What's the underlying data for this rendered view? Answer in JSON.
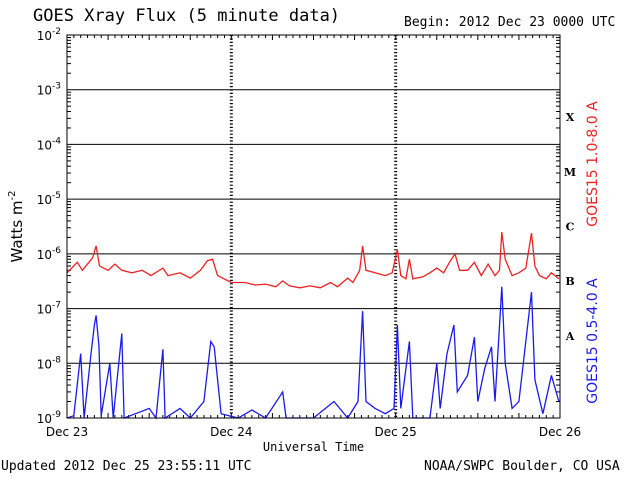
{
  "header": {
    "title": "GOES Xray Flux (5 minute data)",
    "begin": "Begin:  2012 Dec 23 0000 UTC"
  },
  "footer": {
    "updated": "Updated 2012 Dec 25 23:55:11 UTC",
    "credit": "NOAA/SWPC Boulder, CO USA"
  },
  "chart_data": {
    "type": "line",
    "title": "GOES Xray Flux (5 minute data)",
    "xlabel": "Universal Time",
    "ylabel": "Watts m",
    "ylabel_sup": "-2",
    "yscale": "log",
    "ylim": [
      1e-09,
      0.01
    ],
    "xlim": [
      "2012-12-23 00:00",
      "2012-12-26 00:00"
    ],
    "x_ticks": [
      "Dec 23",
      "Dec 24",
      "Dec 25",
      "Dec 26"
    ],
    "y_ticks": [
      {
        "base": "10",
        "exp": "-2",
        "value": 0.01
      },
      {
        "base": "10",
        "exp": "-3",
        "value": 0.001
      },
      {
        "base": "10",
        "exp": "-4",
        "value": 0.0001
      },
      {
        "base": "10",
        "exp": "-5",
        "value": 1e-05
      },
      {
        "base": "10",
        "exp": "-6",
        "value": 1e-06
      },
      {
        "base": "10",
        "exp": "-7",
        "value": 1e-07
      },
      {
        "base": "10",
        "exp": "-8",
        "value": 1e-08
      },
      {
        "base": "10",
        "exp": "-9",
        "value": 1e-09
      }
    ],
    "flare_classes": [
      {
        "label": "X",
        "value": 0.0003162
      },
      {
        "label": "M",
        "value": 3.162e-05
      },
      {
        "label": "C",
        "value": 3.162e-06
      },
      {
        "label": "B",
        "value": 3.162e-07
      },
      {
        "label": "A",
        "value": 3.162e-08
      }
    ],
    "grid": true,
    "colors": {
      "long": "#ee2222",
      "short": "#1a1aee"
    },
    "series": [
      {
        "name": "GOES15 1.0-8.0 A",
        "color": "#ee2222",
        "points": [
          [
            "2012-12-23 00:00",
            4.5e-07
          ],
          [
            "2012-12-23 01:30",
            7e-07
          ],
          [
            "2012-12-23 02:15",
            5e-07
          ],
          [
            "2012-12-23 03:45",
            8.5e-07
          ],
          [
            "2012-12-23 04:15",
            1.4e-06
          ],
          [
            "2012-12-23 04:45",
            6e-07
          ],
          [
            "2012-12-23 06:00",
            5e-07
          ],
          [
            "2012-12-23 07:00",
            6.5e-07
          ],
          [
            "2012-12-23 08:00",
            5e-07
          ],
          [
            "2012-12-23 09:30",
            4.5e-07
          ],
          [
            "2012-12-23 11:00",
            5e-07
          ],
          [
            "2012-12-23 12:15",
            4e-07
          ],
          [
            "2012-12-23 14:00",
            5.5e-07
          ],
          [
            "2012-12-23 14:45",
            4e-07
          ],
          [
            "2012-12-23 16:30",
            4.5e-07
          ],
          [
            "2012-12-23 18:00",
            3.6e-07
          ],
          [
            "2012-12-23 19:30",
            5e-07
          ],
          [
            "2012-12-23 20:30",
            7.5e-07
          ],
          [
            "2012-12-23 21:15",
            8e-07
          ],
          [
            "2012-12-23 22:00",
            4e-07
          ],
          [
            "2012-12-24 00:00",
            3e-07
          ],
          [
            "2012-12-24 02:00",
            3e-07
          ],
          [
            "2012-12-24 03:30",
            2.7e-07
          ],
          [
            "2012-12-24 05:00",
            2.8e-07
          ],
          [
            "2012-12-24 06:30",
            2.5e-07
          ],
          [
            "2012-12-24 07:30",
            3.2e-07
          ],
          [
            "2012-12-24 08:30",
            2.6e-07
          ],
          [
            "2012-12-24 10:00",
            2.4e-07
          ],
          [
            "2012-12-24 11:30",
            2.6e-07
          ],
          [
            "2012-12-24 13:00",
            2.4e-07
          ],
          [
            "2012-12-24 14:30",
            3e-07
          ],
          [
            "2012-12-24 15:30",
            2.5e-07
          ],
          [
            "2012-12-24 17:00",
            3.6e-07
          ],
          [
            "2012-12-24 17:45",
            3e-07
          ],
          [
            "2012-12-24 18:45",
            5e-07
          ],
          [
            "2012-12-24 19:10",
            1.4e-06
          ],
          [
            "2012-12-24 19:40",
            5e-07
          ],
          [
            "2012-12-24 21:00",
            4.5e-07
          ],
          [
            "2012-12-24 22:30",
            4e-07
          ],
          [
            "2012-12-24 23:30",
            4.5e-07
          ],
          [
            "2012-12-25 00:15",
            1.2e-06
          ],
          [
            "2012-12-25 00:45",
            4e-07
          ],
          [
            "2012-12-25 01:30",
            3.5e-07
          ],
          [
            "2012-12-25 02:00",
            8e-07
          ],
          [
            "2012-12-25 02:30",
            3.5e-07
          ],
          [
            "2012-12-25 04:00",
            3.8e-07
          ],
          [
            "2012-12-25 05:00",
            4.5e-07
          ],
          [
            "2012-12-25 06:00",
            5.5e-07
          ],
          [
            "2012-12-25 07:00",
            4.5e-07
          ],
          [
            "2012-12-25 08:00",
            7.5e-07
          ],
          [
            "2012-12-25 08:40",
            1e-06
          ],
          [
            "2012-12-25 09:20",
            5e-07
          ],
          [
            "2012-12-25 10:30",
            5e-07
          ],
          [
            "2012-12-25 11:30",
            7e-07
          ],
          [
            "2012-12-25 12:30",
            4e-07
          ],
          [
            "2012-12-25 13:30",
            6.5e-07
          ],
          [
            "2012-12-25 14:30",
            4e-07
          ],
          [
            "2012-12-25 15:10",
            5e-07
          ],
          [
            "2012-12-25 15:30",
            2.5e-06
          ],
          [
            "2012-12-25 16:00",
            8e-07
          ],
          [
            "2012-12-25 17:00",
            4e-07
          ],
          [
            "2012-12-25 18:00",
            4.5e-07
          ],
          [
            "2012-12-25 19:00",
            5.5e-07
          ],
          [
            "2012-12-25 19:50",
            2.4e-06
          ],
          [
            "2012-12-25 20:20",
            6e-07
          ],
          [
            "2012-12-25 21:00",
            4e-07
          ],
          [
            "2012-12-25 22:00",
            3.5e-07
          ],
          [
            "2012-12-25 22:45",
            4.5e-07
          ],
          [
            "2012-12-25 23:50",
            3.5e-07
          ]
        ]
      },
      {
        "name": "GOES15 0.5-4.0 A",
        "color": "#1a1aee",
        "points": [
          [
            "2012-12-23 00:00",
            1e-09
          ],
          [
            "2012-12-23 01:00",
            1.1e-09
          ],
          [
            "2012-12-23 02:00",
            1.5e-08
          ],
          [
            "2012-12-23 02:30",
            1e-09
          ],
          [
            "2012-12-23 03:30",
            1.5e-08
          ],
          [
            "2012-12-23 04:00",
            5e-08
          ],
          [
            "2012-12-23 04:15",
            7.5e-08
          ],
          [
            "2012-12-23 04:40",
            2e-08
          ],
          [
            "2012-12-23 05:00",
            1.1e-09
          ],
          [
            "2012-12-23 06:15",
            1e-08
          ],
          [
            "2012-12-23 06:45",
            1e-09
          ],
          [
            "2012-12-23 08:00",
            3.5e-08
          ],
          [
            "2012-12-23 08:20",
            1e-09
          ],
          [
            "2012-12-23 10:00",
            1.2e-09
          ],
          [
            "2012-12-23 12:00",
            1.5e-09
          ],
          [
            "2012-12-23 13:00",
            1e-09
          ],
          [
            "2012-12-23 14:00",
            1.8e-08
          ],
          [
            "2012-12-23 14:20",
            1e-09
          ],
          [
            "2012-12-23 16:30",
            1.5e-09
          ],
          [
            "2012-12-23 18:00",
            1e-09
          ],
          [
            "2012-12-23 20:00",
            2e-09
          ],
          [
            "2012-12-23 21:00",
            2.5e-08
          ],
          [
            "2012-12-23 21:30",
            2e-08
          ],
          [
            "2012-12-23 22:30",
            1.2e-09
          ],
          [
            "2012-12-24 01:00",
            1e-09
          ],
          [
            "2012-12-24 03:00",
            1.4e-09
          ],
          [
            "2012-12-24 05:00",
            1e-09
          ],
          [
            "2012-12-24 07:30",
            3e-09
          ],
          [
            "2012-12-24 08:00",
            1e-09
          ],
          [
            "2012-12-24 12:00",
            1e-09
          ],
          [
            "2012-12-24 15:00",
            2e-09
          ],
          [
            "2012-12-24 17:00",
            1e-09
          ],
          [
            "2012-12-24 18:30",
            2e-09
          ],
          [
            "2012-12-24 19:10",
            9e-08
          ],
          [
            "2012-12-24 19:40",
            2e-09
          ],
          [
            "2012-12-24 21:00",
            1.5e-09
          ],
          [
            "2012-12-24 22:30",
            1.2e-09
          ],
          [
            "2012-12-24 23:45",
            1.5e-09
          ],
          [
            "2012-12-25 00:15",
            5e-08
          ],
          [
            "2012-12-25 00:45",
            1.5e-09
          ],
          [
            "2012-12-25 02:00",
            2.5e-08
          ],
          [
            "2012-12-25 02:30",
            1e-09
          ],
          [
            "2012-12-25 05:00",
            1e-09
          ],
          [
            "2012-12-25 06:00",
            1e-08
          ],
          [
            "2012-12-25 06:30",
            1.5e-09
          ],
          [
            "2012-12-25 07:30",
            1.5e-08
          ],
          [
            "2012-12-25 08:30",
            5e-08
          ],
          [
            "2012-12-25 09:00",
            3e-09
          ],
          [
            "2012-12-25 10:30",
            6e-09
          ],
          [
            "2012-12-25 11:30",
            3e-08
          ],
          [
            "2012-12-25 12:00",
            2e-09
          ],
          [
            "2012-12-25 13:00",
            8e-09
          ],
          [
            "2012-12-25 14:00",
            2e-08
          ],
          [
            "2012-12-25 14:30",
            2e-09
          ],
          [
            "2012-12-25 15:30",
            2.5e-07
          ],
          [
            "2012-12-25 16:00",
            1e-08
          ],
          [
            "2012-12-25 17:00",
            1.5e-09
          ],
          [
            "2012-12-25 18:00",
            2e-09
          ],
          [
            "2012-12-25 19:50",
            2e-07
          ],
          [
            "2012-12-25 20:20",
            5e-09
          ],
          [
            "2012-12-25 21:30",
            1.2e-09
          ],
          [
            "2012-12-25 22:45",
            6e-09
          ],
          [
            "2012-12-25 23:50",
            2e-09
          ]
        ]
      }
    ]
  }
}
